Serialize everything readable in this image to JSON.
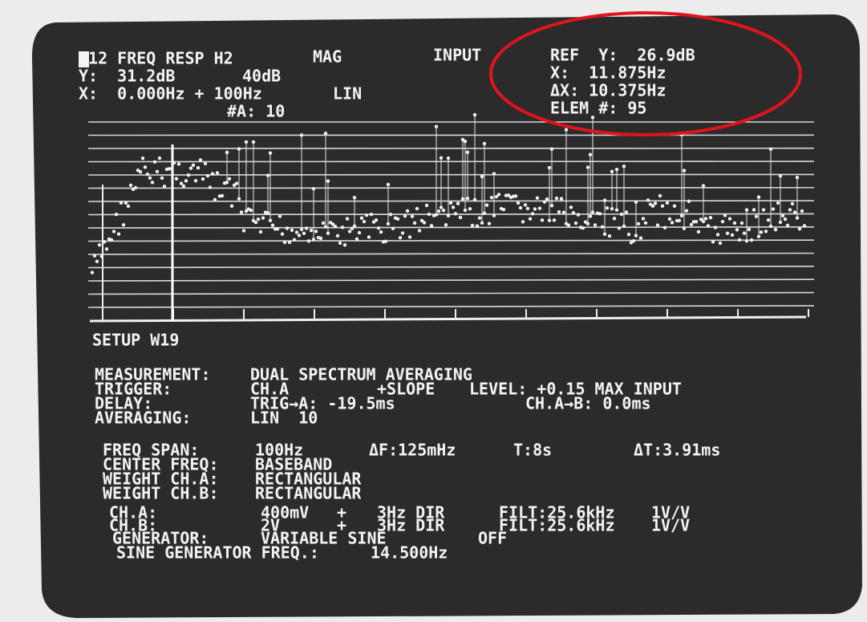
{
  "header": {
    "title": "W12 FREQ RESP H2",
    "mode": "MAG",
    "source": "INPUT",
    "y_readout": "Y:  31.2dB",
    "y_scale": "40dB",
    "x_readout": "X:  0.000Hz + 100Hz",
    "x_scale": "LIN",
    "averages": "#A: 10"
  },
  "cursor": {
    "ref_y": "REF  Y:  26.9dB",
    "x": "X:  11.875Hz",
    "delta_x": "ΔX: 10.375Hz",
    "element": "ELEM #: 95"
  },
  "setup": {
    "title": "SETUP W19",
    "rows": [
      [
        "MEASUREMENT:",
        "DUAL SPECTRUM AVERAGING"
      ],
      [
        "TRIGGER:",
        "CH.A",
        "+SLOPE",
        "LEVEL: +0.15 MAX INPUT"
      ],
      [
        "DELAY:",
        "TRIG→A: -19.5ms",
        "CH.A→B: 0.0ms"
      ],
      [
        "AVERAGING:",
        "LIN  10"
      ],
      [
        "FREQ SPAN:",
        "100Hz",
        "ΔF:125mHz",
        "T:8s",
        "ΔT:3.91ms"
      ],
      [
        "CENTER FREQ:",
        "BASEBAND"
      ],
      [
        "WEIGHT CH.A:",
        "RECTANGULAR"
      ],
      [
        "WEIGHT CH.B:",
        "RECTANGULAR"
      ],
      [
        "CH.A:",
        "400mV",
        "+",
        "3Hz DIR",
        "FILT:25.6kHz",
        "1V/V"
      ],
      [
        "CH.B:",
        "2V",
        "+",
        "3Hz DIR",
        "FILT:25.6kHz",
        "1V/V"
      ],
      [
        "GENERATOR:",
        "VARIABLE SINE",
        "OFF"
      ],
      [
        "SINE GENERATOR FREQ.:",
        "14.500Hz"
      ]
    ]
  }
}
